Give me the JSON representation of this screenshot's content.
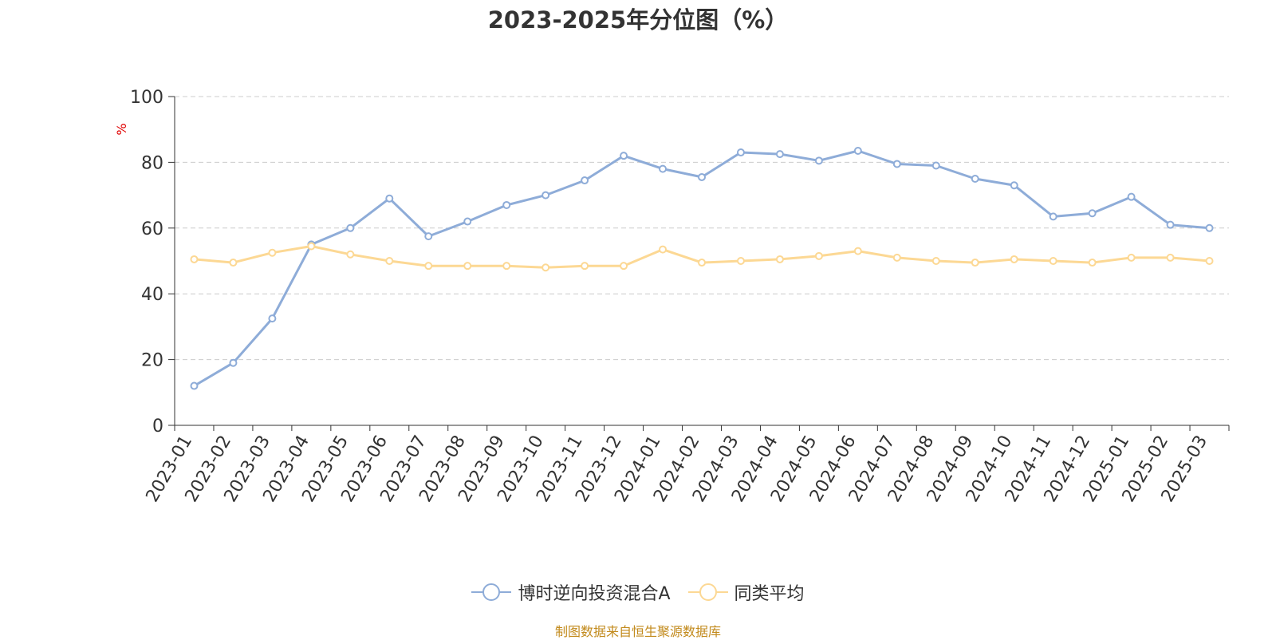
{
  "chart_data": {
    "type": "line",
    "title": "2023-2025年分位图（%）",
    "ylabel": "%",
    "xlabel": "",
    "ylim": [
      0,
      100
    ],
    "yticks": [
      0,
      20,
      40,
      60,
      80,
      100
    ],
    "grid": true,
    "legend_position": "bottom",
    "categories": [
      "2023-01",
      "2023-02",
      "2023-03",
      "2023-04",
      "2023-05",
      "2023-06",
      "2023-07",
      "2023-08",
      "2023-09",
      "2023-10",
      "2023-11",
      "2023-12",
      "2024-01",
      "2024-02",
      "2024-03",
      "2024-04",
      "2024-05",
      "2024-06",
      "2024-07",
      "2024-08",
      "2024-09",
      "2024-10",
      "2024-11",
      "2024-12",
      "2025-01",
      "2025-02",
      "2025-03"
    ],
    "series": [
      {
        "name": "博时逆向投资混合A",
        "color": "#8eacd8",
        "values": [
          12.0,
          19.0,
          32.5,
          55.0,
          60.0,
          69.0,
          57.5,
          62.0,
          67.0,
          70.0,
          74.5,
          82.0,
          78.0,
          75.5,
          83.0,
          82.5,
          80.5,
          83.5,
          79.5,
          79.0,
          75.0,
          73.0,
          63.5,
          64.5,
          69.5,
          61.0,
          60.0
        ]
      },
      {
        "name": "同类平均",
        "color": "#fcd894",
        "values": [
          50.5,
          49.5,
          52.5,
          54.5,
          52.0,
          50.0,
          48.5,
          48.5,
          48.5,
          48.0,
          48.5,
          48.5,
          53.5,
          49.5,
          50.0,
          50.5,
          51.5,
          53.0,
          51.0,
          50.0,
          49.5,
          50.5,
          50.0,
          49.5,
          51.0,
          51.0,
          50.0
        ]
      }
    ]
  },
  "source_note": "制图数据来自恒生聚源数据库"
}
